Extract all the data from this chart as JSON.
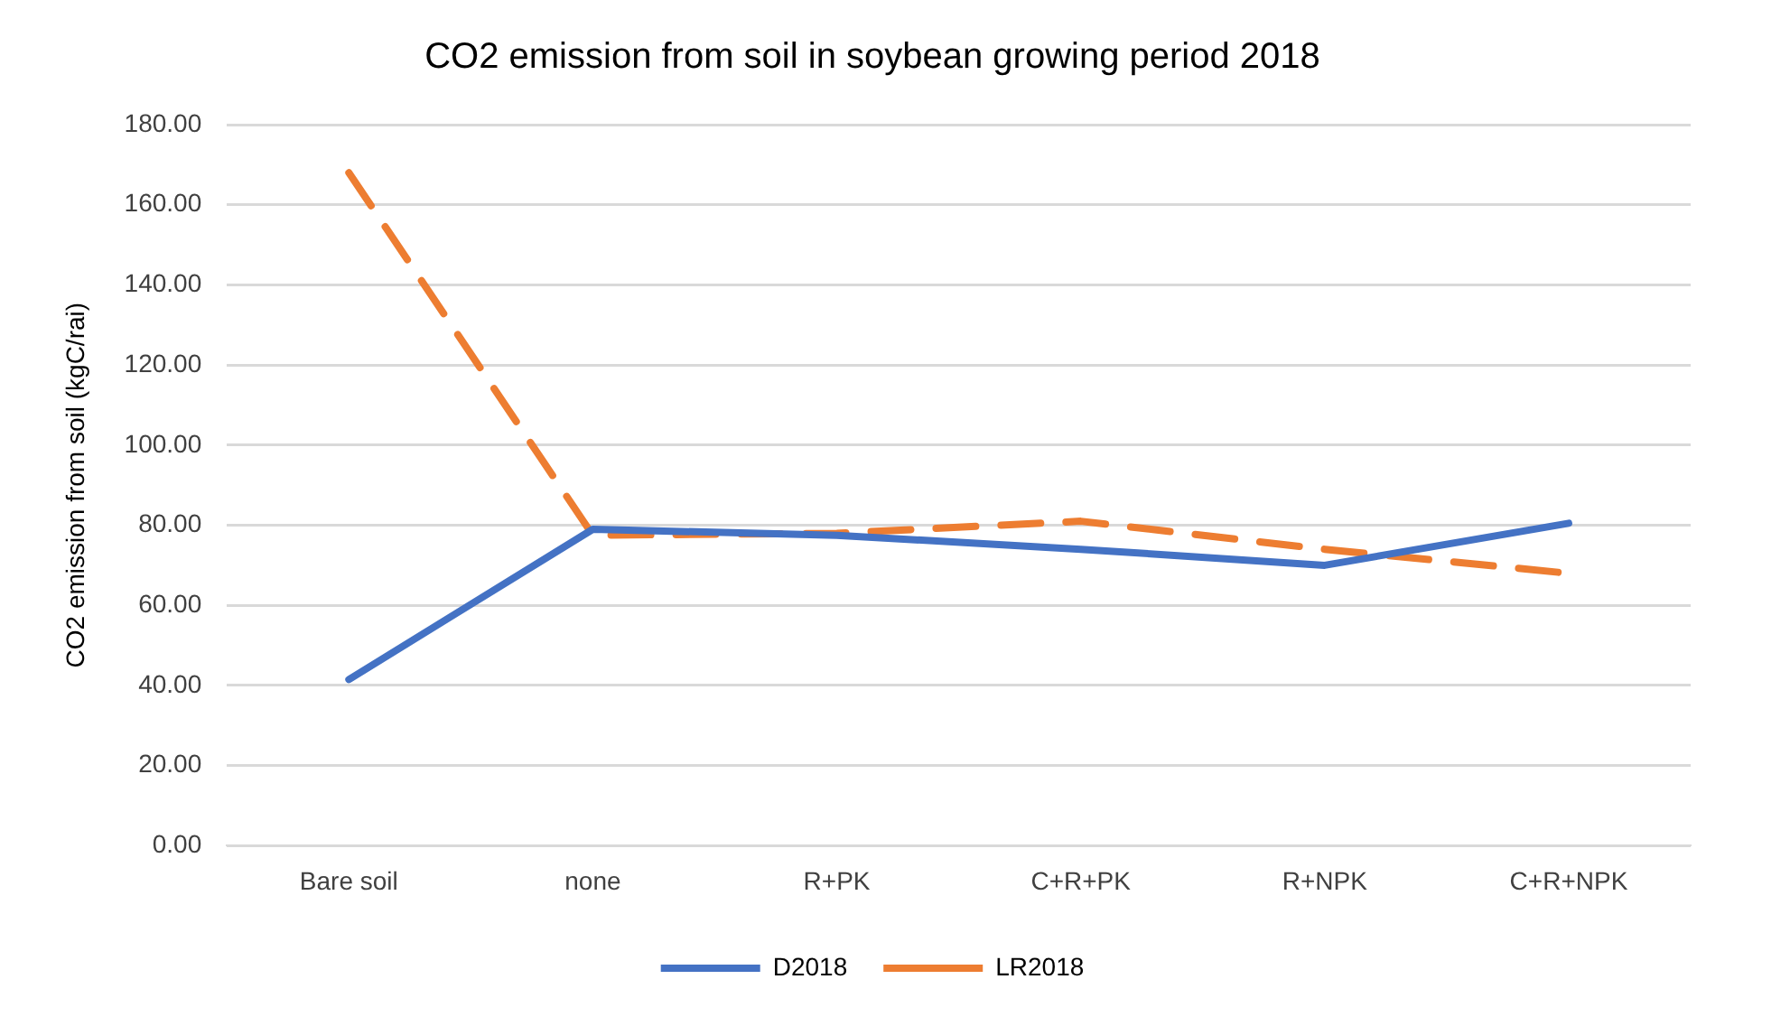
{
  "chart_data": {
    "type": "line",
    "title": "CO2 emission from soil in soybean growing period 2018",
    "ylabel": "CO2 emission from soil (kgC/rai)",
    "categories": [
      "Bare soil",
      "none",
      "R+PK",
      "C+R+PK",
      "R+NPK",
      "C+R+NPK"
    ],
    "series": [
      {
        "name": "D2018",
        "color": "#4472c4",
        "values": [
          41.5,
          79,
          77.5,
          74,
          70,
          80.5
        ],
        "line_style": "solid"
      },
      {
        "name": "LR2018",
        "color": "#ed7d31",
        "values": [
          168,
          77.5,
          78,
          81,
          74,
          68
        ],
        "line_style": "dashed"
      }
    ],
    "ylim": [
      0,
      180
    ],
    "yticks": [
      {
        "value": 0,
        "label": "0.00"
      },
      {
        "value": 20,
        "label": "20.00"
      },
      {
        "value": 40,
        "label": "40.00"
      },
      {
        "value": 60,
        "label": "60.00"
      },
      {
        "value": 80,
        "label": "80.00"
      },
      {
        "value": 100,
        "label": "100.00"
      },
      {
        "value": 120,
        "label": "120.00"
      },
      {
        "value": 140,
        "label": "140.00"
      },
      {
        "value": 160,
        "label": "160.00"
      },
      {
        "value": 180,
        "label": "180.00"
      }
    ],
    "grid": "y",
    "legend": "bottom",
    "marker": "none"
  }
}
